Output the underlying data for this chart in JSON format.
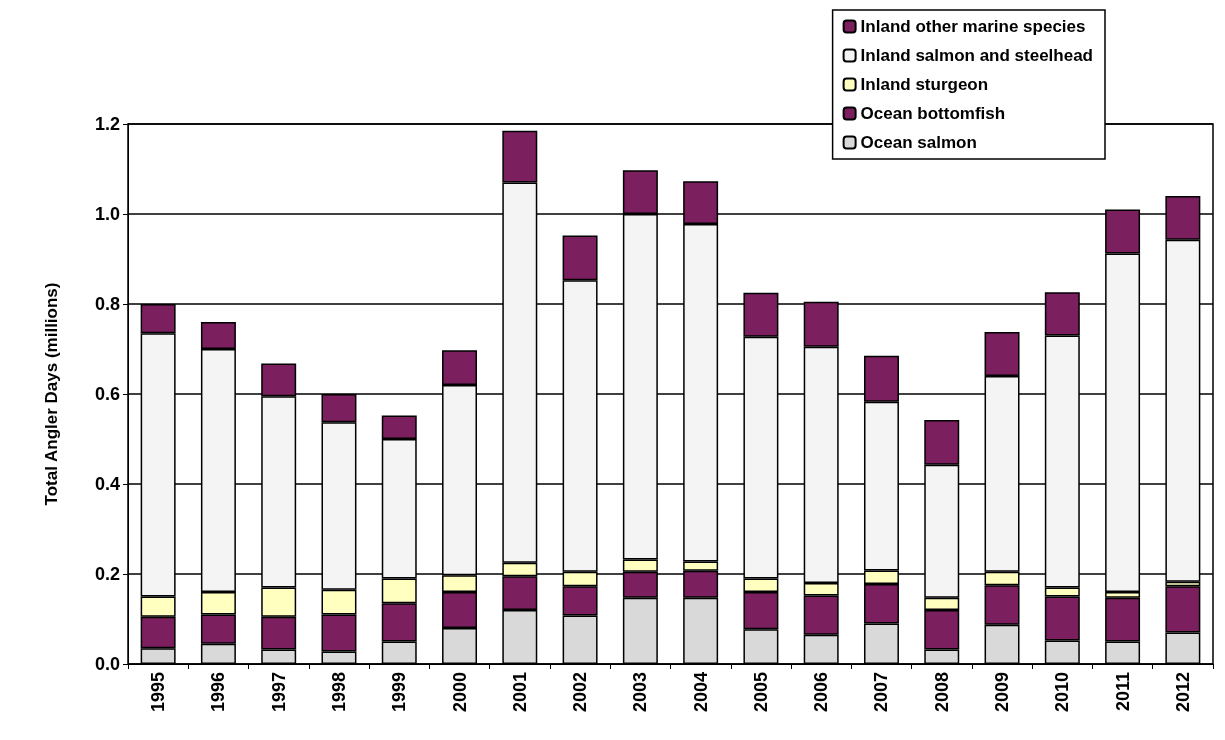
{
  "chart_data": {
    "type": "bar",
    "stacked": true,
    "ylabel": "Total Angler Days (millions)",
    "categories": [
      "1995",
      "1996",
      "1997",
      "1998",
      "1999",
      "2000",
      "2001",
      "2002",
      "2003",
      "2004",
      "2005",
      "2006",
      "2007",
      "2008",
      "2009",
      "2010",
      "2011",
      "2012"
    ],
    "series": [
      {
        "name": "Ocean salmon",
        "color": "#d9d9d9",
        "values": [
          0.035,
          0.045,
          0.032,
          0.028,
          0.05,
          0.08,
          0.12,
          0.108,
          0.147,
          0.147,
          0.077,
          0.065,
          0.09,
          0.032,
          0.087,
          0.052,
          0.05,
          0.07
        ]
      },
      {
        "name": "Ocean bottomfish",
        "color": "#7b1f5e",
        "values": [
          0.07,
          0.065,
          0.073,
          0.082,
          0.085,
          0.08,
          0.075,
          0.065,
          0.058,
          0.06,
          0.083,
          0.087,
          0.088,
          0.088,
          0.088,
          0.098,
          0.097,
          0.103
        ]
      },
      {
        "name": "Inland sturgeon",
        "color": "#ffffc0",
        "values": [
          0.045,
          0.05,
          0.065,
          0.055,
          0.055,
          0.037,
          0.03,
          0.032,
          0.027,
          0.021,
          0.03,
          0.028,
          0.03,
          0.027,
          0.03,
          0.02,
          0.013,
          0.01
        ]
      },
      {
        "name": "Inland salmon and steelhead",
        "color": "#f4f4f4",
        "values": [
          0.585,
          0.54,
          0.425,
          0.372,
          0.31,
          0.423,
          0.845,
          0.648,
          0.768,
          0.75,
          0.537,
          0.525,
          0.375,
          0.296,
          0.435,
          0.56,
          0.752,
          0.76
        ]
      },
      {
        "name": "Inland other marine species",
        "color": "#7b1f5e",
        "values": [
          0.065,
          0.06,
          0.073,
          0.063,
          0.052,
          0.077,
          0.115,
          0.099,
          0.097,
          0.095,
          0.098,
          0.1,
          0.102,
          0.099,
          0.098,
          0.096,
          0.098,
          0.097
        ]
      }
    ],
    "ylim": [
      0,
      1.2
    ],
    "yticks": [
      {
        "value": 0,
        "label": "0.0"
      },
      0.2,
      0.4,
      0.6,
      0.8,
      {
        "value": 1,
        "label": "1.0"
      },
      1.2
    ],
    "grid": "y",
    "legend": "top right"
  }
}
